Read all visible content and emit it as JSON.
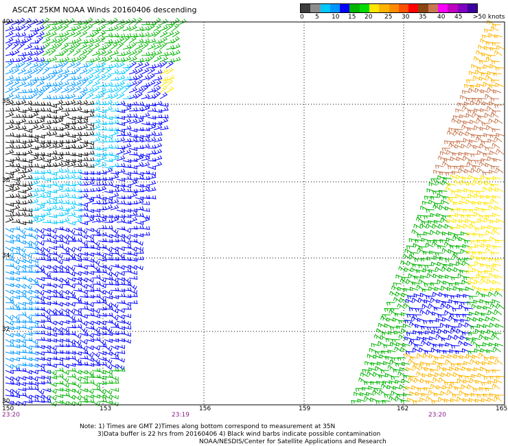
{
  "header": {
    "title": "ASCAT 25KM NOAA Winds 20160406 descending"
  },
  "legend": {
    "colors": [
      "#3c3c3c",
      "#8c8c8c",
      "#00c8ff",
      "#0096ff",
      "#0000ff",
      "#00b400",
      "#00dc00",
      "#ffe600",
      "#ffb400",
      "#ff8c00",
      "#ff5000",
      "#ff0000",
      "#8b4513",
      "#c87850",
      "#ff00ff",
      "#c000c0",
      "#8000c0",
      "#3c00a0"
    ],
    "labels": [
      "0",
      "5",
      "10",
      "15",
      "20",
      "25",
      "30",
      "35",
      "40",
      "45",
      ">50 knots"
    ]
  },
  "axes": {
    "lat_labels": [
      "40",
      "38",
      "36",
      "34",
      "32",
      "30"
    ],
    "lon_labels": [
      "150",
      "153",
      "156",
      "159",
      "162",
      "165"
    ],
    "time_labels": [
      "23:20",
      "23:19",
      "23:20"
    ]
  },
  "note": {
    "line1": "Note: 1) Times are GMT 2)Times along bottom correspond to measurement at 35N",
    "line2": "3)Data buffer is 22 hrs from 20160406 4) Black wind barbs indicate possible contamination",
    "line3": "NOAA/NESDIS/Center for Satellite Applications and Research"
  }
}
